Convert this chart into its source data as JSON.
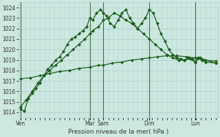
{
  "background_color": "#cce8e0",
  "grid_color": "#aacccc",
  "line_color_dark": "#1a5c1a",
  "line_color_light": "#2d7a2d",
  "xlabel": "Pression niveau de la mer( hPa )",
  "ylim": [
    1013.5,
    1024.5
  ],
  "yticks": [
    1014,
    1015,
    1016,
    1017,
    1018,
    1019,
    1020,
    1021,
    1022,
    1023,
    1024
  ],
  "day_labels": [
    "Ven",
    "Mar",
    "Sam",
    "Dim",
    "Lun"
  ],
  "day_positions": [
    0.0,
    0.355,
    0.425,
    0.66,
    0.895
  ],
  "vline_positions": [
    0.0,
    0.355,
    0.425,
    0.66,
    0.895
  ],
  "series1_x": [
    0.0,
    0.02,
    0.04,
    0.06,
    0.08,
    0.1,
    0.12,
    0.14,
    0.16,
    0.18,
    0.2,
    0.22,
    0.24,
    0.26,
    0.28,
    0.3,
    0.32,
    0.34,
    0.355,
    0.37,
    0.39,
    0.41,
    0.425,
    0.44,
    0.46,
    0.48,
    0.5,
    0.52,
    0.54,
    0.56,
    0.58,
    0.6,
    0.62,
    0.64,
    0.66,
    0.68,
    0.7,
    0.72,
    0.74,
    0.76,
    0.78,
    0.8,
    0.82,
    0.84,
    0.86,
    0.88,
    0.895,
    0.91,
    0.93,
    0.95,
    1.0
  ],
  "series1_y": [
    1014.3,
    1014.1,
    1015.3,
    1015.8,
    1016.3,
    1016.8,
    1017.5,
    1018.1,
    1018.5,
    1019.0,
    1019.3,
    1019.8,
    1020.5,
    1021.0,
    1021.2,
    1021.5,
    1021.8,
    1022.2,
    1023.0,
    1022.8,
    1023.5,
    1023.8,
    1023.5,
    1023.2,
    1022.5,
    1022.2,
    1022.8,
    1023.5,
    1023.8,
    1023.0,
    1022.5,
    1022.0,
    1022.5,
    1023.0,
    1023.8,
    1023.5,
    1022.5,
    1021.5,
    1020.8,
    1020.0,
    1019.5,
    1019.2,
    1019.1,
    1019.0,
    1019.2,
    1019.1,
    1018.8,
    1019.2,
    1019.0,
    1018.8,
    1018.7
  ],
  "series2_x": [
    0.0,
    0.03,
    0.06,
    0.09,
    0.12,
    0.15,
    0.18,
    0.21,
    0.24,
    0.27,
    0.3,
    0.33,
    0.355,
    0.37,
    0.4,
    0.425,
    0.45,
    0.48,
    0.51,
    0.54,
    0.57,
    0.6,
    0.63,
    0.66,
    0.69,
    0.72,
    0.75,
    0.78,
    0.81,
    0.84,
    0.87,
    0.895,
    0.92,
    0.95,
    1.0
  ],
  "series2_y": [
    1014.5,
    1015.2,
    1016.0,
    1016.8,
    1017.5,
    1018.0,
    1018.5,
    1019.0,
    1019.5,
    1020.0,
    1020.5,
    1021.0,
    1021.5,
    1021.8,
    1022.2,
    1022.8,
    1023.0,
    1023.5,
    1023.2,
    1022.8,
    1022.5,
    1022.0,
    1021.5,
    1021.0,
    1020.5,
    1020.0,
    1019.5,
    1019.2,
    1019.0,
    1019.0,
    1019.1,
    1018.8,
    1019.2,
    1019.0,
    1018.7
  ],
  "series3_x": [
    0.0,
    0.05,
    0.1,
    0.15,
    0.2,
    0.25,
    0.3,
    0.355,
    0.4,
    0.425,
    0.47,
    0.52,
    0.57,
    0.62,
    0.66,
    0.7,
    0.75,
    0.8,
    0.85,
    0.895,
    0.93,
    1.0
  ],
  "series3_y": [
    1017.2,
    1017.3,
    1017.5,
    1017.7,
    1017.9,
    1018.0,
    1018.2,
    1018.3,
    1018.5,
    1018.5,
    1018.7,
    1018.8,
    1019.0,
    1019.1,
    1019.2,
    1019.3,
    1019.4,
    1019.4,
    1019.3,
    1019.2,
    1019.0,
    1018.9
  ]
}
